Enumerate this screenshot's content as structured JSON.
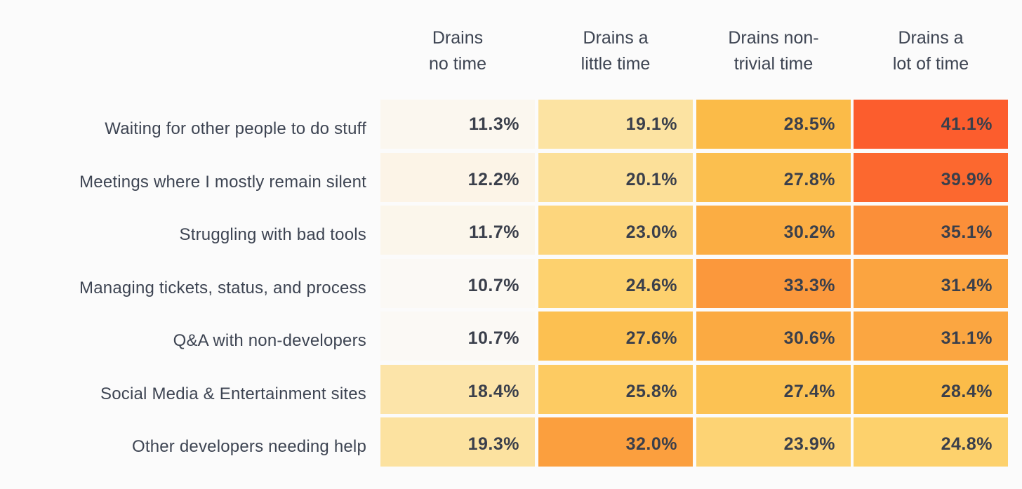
{
  "chart_data": {
    "type": "heatmap",
    "columns": [
      "Drains\nno time",
      "Drains a\nlittle time",
      "Drains non-\ntrivial time",
      "Drains a\nlot of time"
    ],
    "rows": [
      "Waiting for other people to do stuff",
      "Meetings where I mostly remain silent",
      "Struggling with bad tools",
      "Managing tickets, status, and process",
      "Q&A with non-developers",
      "Social Media & Entertainment sites",
      "Other developers needing help"
    ],
    "values": [
      [
        11.3,
        19.1,
        28.5,
        41.1
      ],
      [
        12.2,
        20.1,
        27.8,
        39.9
      ],
      [
        11.7,
        23.0,
        30.2,
        35.1
      ],
      [
        10.7,
        24.6,
        33.3,
        31.4
      ],
      [
        10.7,
        27.6,
        30.6,
        31.1
      ],
      [
        18.4,
        25.8,
        27.4,
        28.4
      ],
      [
        19.3,
        32.0,
        23.9,
        24.8
      ]
    ],
    "value_suffix": "%",
    "color_scale": {
      "stops": [
        {
          "v": 10.5,
          "c": "#fbfaf7"
        },
        {
          "v": 13.0,
          "c": "#fcf1df"
        },
        {
          "v": 19.0,
          "c": "#fce3a3"
        },
        {
          "v": 25.0,
          "c": "#fdd06a"
        },
        {
          "v": 28.5,
          "c": "#fbbb48"
        },
        {
          "v": 32.0,
          "c": "#fb9f3e"
        },
        {
          "v": 36.0,
          "c": "#fb8a38"
        },
        {
          "v": 41.5,
          "c": "#fc5a2c"
        }
      ]
    }
  }
}
